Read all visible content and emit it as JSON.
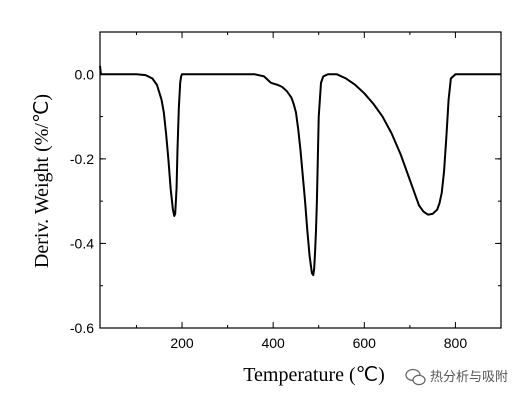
{
  "chart_data": {
    "type": "line",
    "xlabel": "Temperature (℃)",
    "ylabel": "Deriv. Weight (%/℃)",
    "xlim": [
      20,
      900
    ],
    "ylim": [
      -0.6,
      0.1
    ],
    "xticks": [
      200,
      400,
      600,
      800
    ],
    "yticks": [
      0.0,
      -0.2,
      -0.4,
      -0.6
    ],
    "xtick_labels": [
      "200",
      "400",
      "600",
      "800"
    ],
    "ytick_labels": [
      "0.0",
      "-0.2",
      "-0.4",
      "-0.6"
    ],
    "grid": false,
    "series": [
      {
        "color": "#000000",
        "x": [
          20,
          22,
          30,
          60,
          100,
          120,
          135,
          145,
          155,
          160,
          165,
          170,
          175,
          180,
          183,
          185,
          188,
          190,
          193,
          196,
          198,
          200,
          205,
          220,
          300,
          360,
          380,
          390,
          395,
          400,
          410,
          420,
          430,
          440,
          445,
          450,
          455,
          460,
          465,
          470,
          475,
          480,
          485,
          488,
          490,
          492,
          494,
          496,
          498,
          500,
          505,
          510,
          520,
          540,
          560,
          580,
          600,
          620,
          640,
          660,
          680,
          700,
          710,
          720,
          730,
          740,
          750,
          760,
          765,
          770,
          775,
          780,
          785,
          790,
          800,
          850,
          900
        ],
        "y": [
          0.02,
          0.0,
          0.0,
          0.0,
          0.0,
          -0.002,
          -0.01,
          -0.025,
          -0.06,
          -0.09,
          -0.14,
          -0.2,
          -0.27,
          -0.32,
          -0.335,
          -0.33,
          -0.27,
          -0.18,
          -0.08,
          -0.02,
          -0.005,
          0.0,
          0.0,
          0.0,
          0.0,
          0.0,
          -0.005,
          -0.015,
          -0.02,
          -0.022,
          -0.025,
          -0.03,
          -0.04,
          -0.055,
          -0.07,
          -0.09,
          -0.13,
          -0.18,
          -0.24,
          -0.3,
          -0.37,
          -0.43,
          -0.47,
          -0.475,
          -0.46,
          -0.42,
          -0.37,
          -0.3,
          -0.2,
          -0.1,
          -0.02,
          -0.005,
          0.0,
          0.0,
          -0.01,
          -0.025,
          -0.045,
          -0.07,
          -0.1,
          -0.14,
          -0.19,
          -0.25,
          -0.28,
          -0.31,
          -0.325,
          -0.332,
          -0.33,
          -0.32,
          -0.305,
          -0.28,
          -0.23,
          -0.15,
          -0.06,
          -0.01,
          0.0,
          0.0,
          0.0
        ]
      }
    ]
  },
  "watermark": {
    "text": "热分析与吸附",
    "icon": "wechat-icon"
  }
}
